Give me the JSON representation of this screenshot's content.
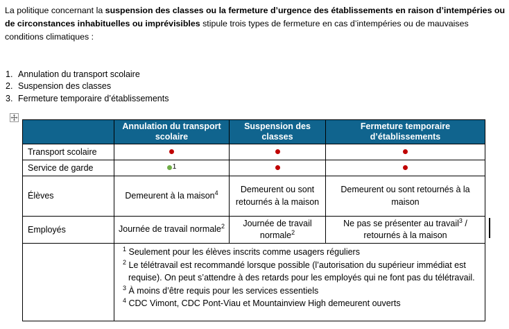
{
  "intro": {
    "before": "La politique concernant la ",
    "bold": "suspension des classes ou la fermeture d’urgence des établissements en raison d’intempéries ou de circonstances inhabituelles ou imprévisibles",
    "after": " stipule trois types de fermeture en cas d’intempéries ou de mauvaises conditions climatiques :"
  },
  "list": {
    "items": [
      {
        "num": "1.",
        "text": "Annulation du transport scolaire"
      },
      {
        "num": "2.",
        "text": "Suspension des classes"
      },
      {
        "num": "3.",
        "text": "Fermeture temporaire d’établissements"
      }
    ]
  },
  "icons": {
    "table_move_handle": "move-cross"
  },
  "table": {
    "header_bg": "#10648E",
    "header_text_color": "#FFFFFF",
    "dot_red": "#C00000",
    "dot_green": "#70AD47",
    "columns": [
      "",
      "Annulation du transport scolaire",
      "Suspension des classes",
      "Fermeture temporaire d’établissements"
    ],
    "rows": [
      {
        "label": "Transport scolaire",
        "cells": [
          {
            "kind": "dot",
            "color": "red"
          },
          {
            "kind": "dot",
            "color": "red"
          },
          {
            "kind": "dot",
            "color": "red"
          }
        ]
      },
      {
        "label": "Service de garde",
        "cells": [
          {
            "kind": "dot",
            "color": "green",
            "ref": "1"
          },
          {
            "kind": "dot",
            "color": "red"
          },
          {
            "kind": "dot",
            "color": "red"
          }
        ]
      },
      {
        "label": "Élèves",
        "cells": [
          {
            "kind": "text",
            "segments": [
              {
                "t": "Demeurent à la maison"
              },
              {
                "sup": "4"
              }
            ]
          },
          {
            "kind": "text",
            "segments": [
              {
                "t": "Demeurent ou sont retournés à la maison"
              }
            ]
          },
          {
            "kind": "text",
            "segments": [
              {
                "t": "Demeurent ou sont retournés à la maison"
              }
            ]
          }
        ]
      },
      {
        "label": "Employés",
        "cells": [
          {
            "kind": "text",
            "segments": [
              {
                "t": "Journée de travail normale"
              },
              {
                "sup": "2"
              }
            ]
          },
          {
            "kind": "text",
            "segments": [
              {
                "t": "Journée de travail normale"
              },
              {
                "sup": "2"
              }
            ]
          },
          {
            "kind": "text",
            "segments": [
              {
                "t": "Ne pas se présenter au travail"
              },
              {
                "sup": "3"
              },
              {
                "t": " / retournés à la maison"
              }
            ]
          }
        ]
      }
    ],
    "footnotes": [
      {
        "ref": "1",
        "text": "Seulement pour les élèves inscrits comme usagers réguliers"
      },
      {
        "ref": "2",
        "text": "Le télétravail est recommandé lorsque possible (l’autorisation du supérieur immédiat est requise). On peut s’attendre à des retards pour les employés qui ne font pas du télétravail."
      },
      {
        "ref": "3",
        "text": "À moins d’être requis pour les services essentiels"
      },
      {
        "ref": "4",
        "text": "CDC Vimont, CDC Pont-Viau et Mountainview High demeurent ouverts"
      }
    ]
  }
}
